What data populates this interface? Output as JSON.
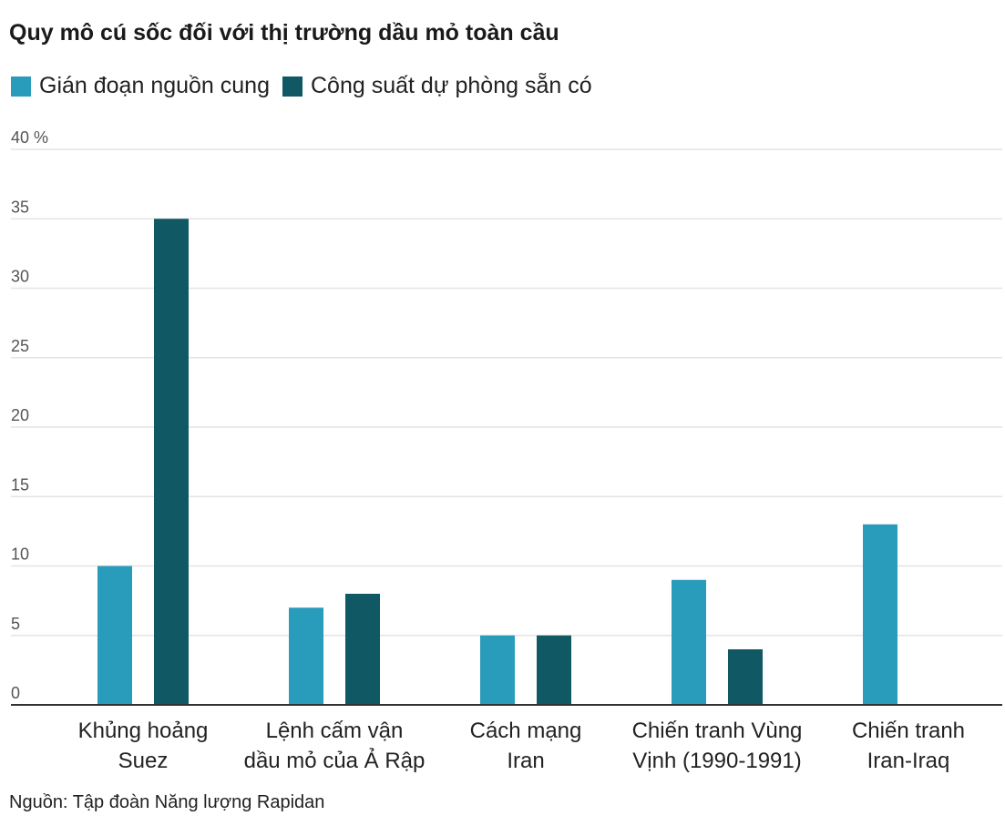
{
  "chart_data": {
    "type": "bar",
    "title": "Quy mô cú sốc đối với thị trường dầu mỏ toàn cầu",
    "categories": [
      [
        "Khủng hoảng",
        "Suez"
      ],
      [
        "Lệnh cấm vận",
        "dầu mỏ của Ả Rập"
      ],
      [
        "Cách mạng",
        "Iran"
      ],
      [
        "Chiến tranh Vùng",
        "Vịnh (1990-1991)"
      ],
      [
        "Chiến tranh",
        "Iran-Iraq"
      ]
    ],
    "series": [
      {
        "name": "Gián đoạn nguồn cung",
        "color": "#2a9cbb",
        "values": [
          10,
          7,
          5,
          9,
          13
        ]
      },
      {
        "name": "Công suất dự phòng sẵn có",
        "color": "#0f5864",
        "values": [
          35,
          8,
          5,
          4,
          null
        ]
      }
    ],
    "yticks": [
      "0",
      "5",
      "10",
      "15",
      "20",
      "25",
      "30",
      "35",
      "40 %"
    ],
    "ylim": [
      0,
      40
    ],
    "ylabel": "",
    "xlabel": "",
    "grid": true,
    "legend": "top-left",
    "source": "Nguồn: Tập đoàn Năng lượng Rapidan"
  }
}
